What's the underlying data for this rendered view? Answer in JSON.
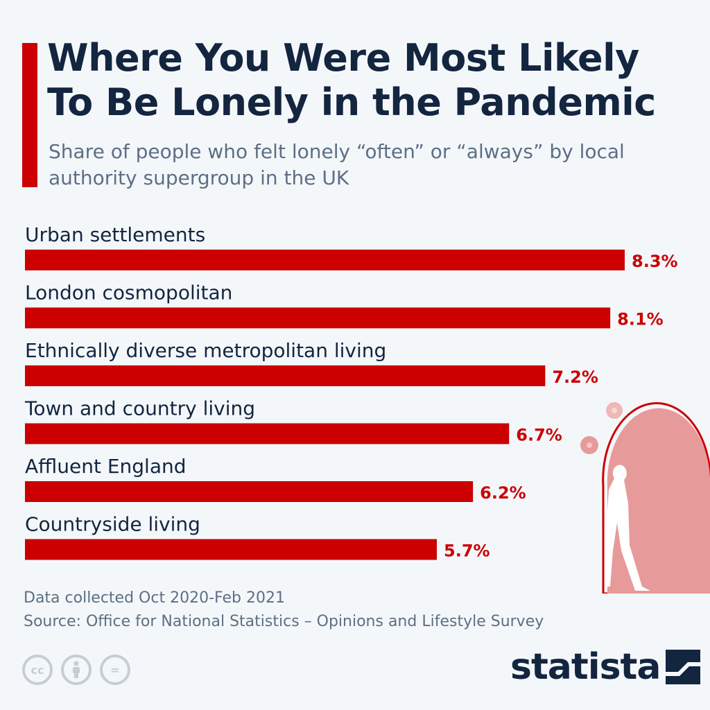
{
  "colors": {
    "accent": "#cc0000",
    "title": "#13253f",
    "muted": "#5c6f84",
    "deco": "#e79a9a"
  },
  "header": {
    "title": "Where You Were Most Likely To Be Lonely in the Pandemic",
    "subtitle": "Share of people who felt lonely “often” or “always” by local authority supergroup in the UK"
  },
  "chart_data": {
    "type": "bar",
    "orientation": "horizontal",
    "categories": [
      "Urban settlements",
      "London cosmopolitan",
      "Ethnically diverse metropolitan living",
      "Town and country living",
      "Affluent England",
      "Countryside living"
    ],
    "values": [
      8.3,
      8.1,
      7.2,
      6.7,
      6.2,
      5.7
    ],
    "value_labels": [
      "8.3%",
      "8.1%",
      "7.2%",
      "6.7%",
      "6.2%",
      "5.7%"
    ],
    "unit": "%",
    "xlim": [
      0,
      8.3
    ],
    "grid": false,
    "legend": "none"
  },
  "footer": {
    "note": "Data collected Oct 2020-Feb 2021",
    "source": "Source: Office for National Statistics – Opinions and Lifestyle Survey",
    "license_icons": [
      "cc-icon",
      "attribution-icon",
      "no-derivatives-icon"
    ],
    "license_glyphs": [
      "cc",
      "",
      "="
    ]
  },
  "brand": {
    "name": "statista",
    "icon": "statista-logo-icon"
  }
}
